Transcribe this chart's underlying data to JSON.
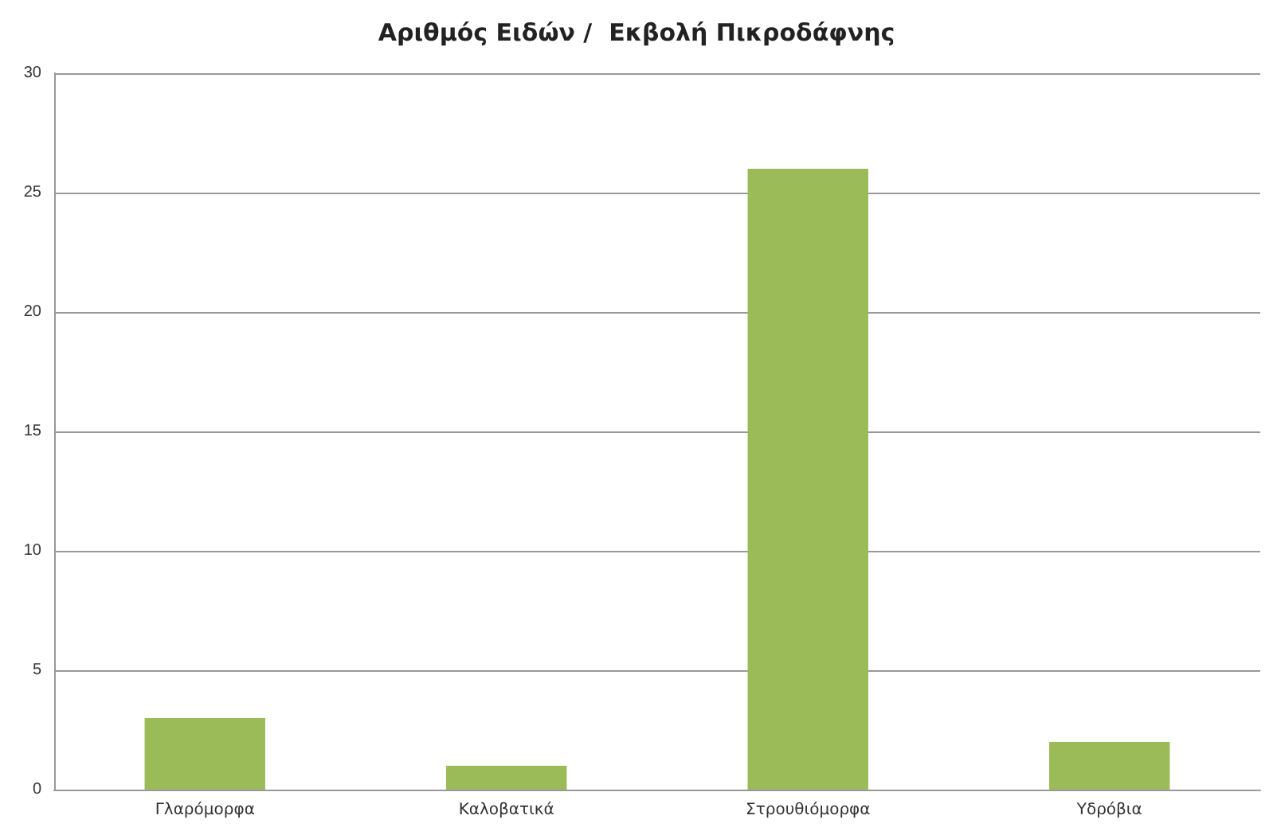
{
  "chart_data": {
    "type": "bar",
    "title": "Αριθμός Ειδών /  Εκβολή Πικροδάφνης",
    "categories": [
      "Γλαρόμορφα",
      "Καλοβατικά",
      "Στρουθιόμορφα",
      "Υδρόβια"
    ],
    "values": [
      3,
      1,
      26,
      2
    ],
    "color": "#9bbb59",
    "ylim": [
      0,
      30
    ],
    "yticks": [
      0,
      5,
      10,
      15,
      20,
      25,
      30
    ],
    "grid": "y"
  }
}
